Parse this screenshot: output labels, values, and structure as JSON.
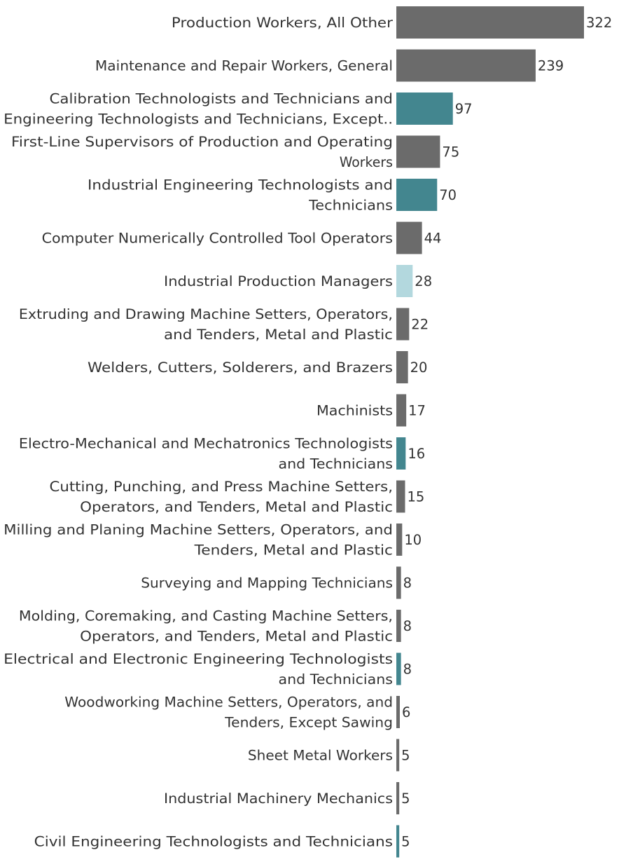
{
  "chart_data": {
    "type": "bar",
    "orientation": "horizontal",
    "title": "",
    "xlabel": "",
    "ylabel": "",
    "grid": false,
    "xlim": [
      0,
      322
    ],
    "colors": {
      "default": "#6b6b6b",
      "teal": "#43868f",
      "light": "#b3d8de"
    },
    "bars": [
      {
        "lines": [
          "Production Workers, All Other"
        ],
        "value": 322,
        "color": "default"
      },
      {
        "lines": [
          "Maintenance and Repair Workers, General"
        ],
        "value": 239,
        "color": "default"
      },
      {
        "lines": [
          "Calibration Technologists and Technicians and",
          "Engineering Technologists and Technicians, Except.."
        ],
        "value": 97,
        "color": "teal"
      },
      {
        "lines": [
          "First-Line Supervisors of Production and Operating",
          "Workers"
        ],
        "value": 75,
        "color": "default"
      },
      {
        "lines": [
          "Industrial Engineering Technologists and",
          "Technicians"
        ],
        "value": 70,
        "color": "teal"
      },
      {
        "lines": [
          "Computer Numerically Controlled Tool Operators"
        ],
        "value": 44,
        "color": "default"
      },
      {
        "lines": [
          "Industrial Production Managers"
        ],
        "value": 28,
        "color": "light"
      },
      {
        "lines": [
          "Extruding and Drawing Machine Setters, Operators,",
          "and Tenders, Metal and Plastic"
        ],
        "value": 22,
        "color": "default"
      },
      {
        "lines": [
          "Welders, Cutters, Solderers, and Brazers"
        ],
        "value": 20,
        "color": "default"
      },
      {
        "lines": [
          "Machinists"
        ],
        "value": 17,
        "color": "default"
      },
      {
        "lines": [
          "Electro-Mechanical and Mechatronics Technologists",
          "and Technicians"
        ],
        "value": 16,
        "color": "teal"
      },
      {
        "lines": [
          "Cutting, Punching, and Press Machine Setters,",
          "Operators, and Tenders, Metal and Plastic"
        ],
        "value": 15,
        "color": "default"
      },
      {
        "lines": [
          "Milling and Planing Machine Setters, Operators, and",
          "Tenders, Metal and Plastic"
        ],
        "value": 10,
        "color": "default"
      },
      {
        "lines": [
          "Surveying and Mapping Technicians"
        ],
        "value": 8,
        "color": "default"
      },
      {
        "lines": [
          "Molding, Coremaking, and Casting Machine Setters,",
          "Operators, and Tenders, Metal and Plastic"
        ],
        "value": 8,
        "color": "default"
      },
      {
        "lines": [
          "Electrical and Electronic Engineering Technologists",
          "and Technicians"
        ],
        "value": 8,
        "color": "teal"
      },
      {
        "lines": [
          "Woodworking Machine Setters, Operators, and",
          "Tenders, Except Sawing"
        ],
        "value": 6,
        "color": "default"
      },
      {
        "lines": [
          "Sheet Metal Workers"
        ],
        "value": 5,
        "color": "default"
      },
      {
        "lines": [
          "Industrial Machinery Mechanics"
        ],
        "value": 5,
        "color": "default"
      },
      {
        "lines": [
          "Civil Engineering Technologists and Technicians"
        ],
        "value": 5,
        "color": "teal"
      }
    ]
  }
}
